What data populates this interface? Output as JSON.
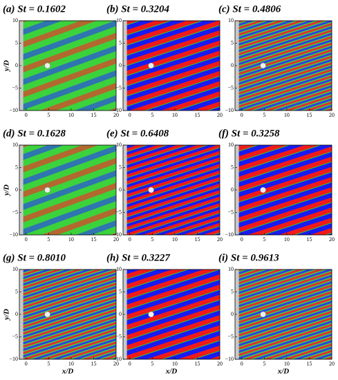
{
  "chart_data": [
    {
      "type": "contour",
      "title": "(a) St = 0.1602",
      "ylabel": "y/D",
      "xlim": [
        -1.5,
        20
      ],
      "ylim": [
        -10,
        10
      ],
      "xticks": [
        0,
        5,
        10,
        15,
        20
      ],
      "yticks": [
        {
          "value": -10,
          "label": "−10"
        },
        {
          "value": -5,
          "label": "−5"
        },
        0,
        5,
        10
      ]
    },
    {
      "type": "contour",
      "title": "(b) St = 0.3204",
      "xlim": [
        -1.5,
        20
      ],
      "ylim": [
        -10,
        10
      ],
      "xticks": [
        0,
        5,
        10,
        15,
        20
      ],
      "yticks": [
        {
          "value": -10,
          "label": "−10"
        },
        {
          "value": -5,
          "label": "−5"
        },
        0,
        5,
        10
      ]
    },
    {
      "type": "contour",
      "title": "(c) St = 0.4806",
      "xlim": [
        -1.5,
        20
      ],
      "ylim": [
        -10,
        10
      ],
      "xticks": [
        0,
        5,
        10,
        15,
        20
      ],
      "yticks": [
        {
          "value": -10,
          "label": "−10"
        },
        {
          "value": -5,
          "label": "−5"
        },
        0,
        5,
        10
      ]
    },
    {
      "type": "contour",
      "title": "(d) St = 0.1628",
      "ylabel": "y/D",
      "xlim": [
        -1.5,
        20
      ],
      "ylim": [
        -10,
        10
      ],
      "xticks": [
        0,
        5,
        10,
        15,
        20
      ],
      "yticks": [
        {
          "value": -10,
          "label": "−10"
        },
        {
          "value": -5,
          "label": "−5"
        },
        0,
        5,
        10
      ]
    },
    {
      "type": "contour",
      "title": "(e) St = 0.6408",
      "xlim": [
        -1.5,
        20
      ],
      "ylim": [
        -10,
        10
      ],
      "xticks": [
        0,
        5,
        10,
        15,
        20
      ],
      "yticks": [
        {
          "value": -10,
          "label": "−10"
        },
        {
          "value": -5,
          "label": "−5"
        },
        0,
        5,
        10
      ]
    },
    {
      "type": "contour",
      "title": "(f) St = 0.3258",
      "xlim": [
        -1.5,
        20
      ],
      "ylim": [
        -10,
        10
      ],
      "xticks": [
        0,
        5,
        10,
        15,
        20
      ],
      "yticks": [
        {
          "value": -10,
          "label": "−10"
        },
        {
          "value": -5,
          "label": "−5"
        },
        0,
        5,
        10
      ]
    },
    {
      "type": "contour",
      "title": "(g) St = 0.8010",
      "xlabel": "x/D",
      "ylabel": "y/D",
      "xlim": [
        -1.5,
        20
      ],
      "ylim": [
        -10,
        10
      ],
      "xticks": [
        0,
        5,
        10,
        15,
        20
      ],
      "yticks": [
        {
          "value": -10,
          "label": "−10"
        },
        {
          "value": -5,
          "label": "−5"
        },
        0,
        5,
        10
      ]
    },
    {
      "type": "contour",
      "title": "(h) St = 0.3227",
      "xlabel": "x/D",
      "xlim": [
        -1.5,
        20
      ],
      "ylim": [
        -10,
        10
      ],
      "xticks": [
        0,
        5,
        10,
        15,
        20
      ],
      "yticks": [
        {
          "value": -10,
          "label": "−10"
        },
        {
          "value": -5,
          "label": "−5"
        },
        0,
        5,
        10
      ]
    },
    {
      "type": "contour",
      "title": "(i) St = 0.9613",
      "xlabel": "x/D",
      "xlim": [
        -1.5,
        20
      ],
      "ylim": [
        -10,
        10
      ],
      "xticks": [
        0,
        5,
        10,
        15,
        20
      ],
      "yticks": [
        {
          "value": -10,
          "label": "−10"
        },
        {
          "value": -5,
          "label": "−5"
        },
        0,
        5,
        10
      ]
    }
  ]
}
